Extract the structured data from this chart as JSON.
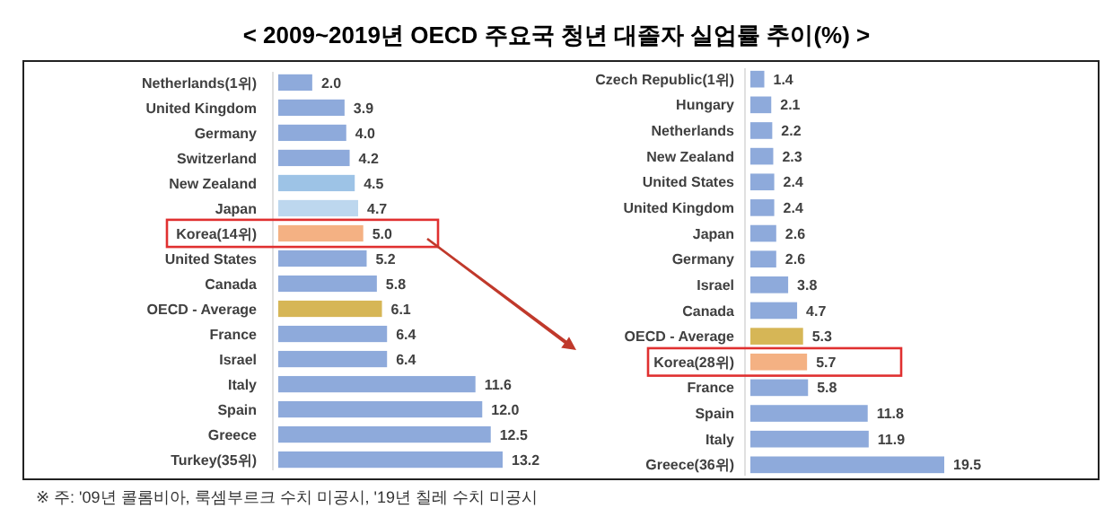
{
  "chart_data": [
    {
      "type": "bar",
      "orientation": "horizontal",
      "title": "< 2009~2019년 OECD 주요국 청년 대졸자 실업률 추이(%) >",
      "categories": [
        "Netherlands(1위)",
        "United Kingdom",
        "Germany",
        "Switzerland",
        "New Zealand",
        "Japan",
        "Korea(14위)",
        "United States",
        "Canada",
        "OECD - Average",
        "France",
        "Israel",
        "Italy",
        "Spain",
        "Greece",
        "Turkey(35위)"
      ],
      "values": [
        2.0,
        3.9,
        4.0,
        4.2,
        4.5,
        4.7,
        5.0,
        5.2,
        5.8,
        6.1,
        6.4,
        6.4,
        11.6,
        12.0,
        12.5,
        13.2
      ],
      "value_labels": [
        "2.0",
        "3.9",
        "4.0",
        "4.2",
        "4.5",
        "4.7",
        "5.0",
        "5.2",
        "5.8",
        "6.1",
        "6.4",
        "6.4",
        "11.6",
        "12.0",
        "12.5",
        "13.2"
      ],
      "colors": [
        "#8eaadb",
        "#8eaadb",
        "#8eaadb",
        "#8eaadb",
        "#9dc3e6",
        "#bdd7ee",
        "#f4b183",
        "#8eaadb",
        "#8eaadb",
        "#d6b656",
        "#8eaadb",
        "#8eaadb",
        "#8eaadb",
        "#8eaadb",
        "#8eaadb",
        "#8eaadb"
      ]
    },
    {
      "type": "bar",
      "orientation": "horizontal",
      "data_labels": true,
      "annotations": [
        "※ 주: '09년 콜롬비아, 룩셈부르크 수치 미공시, '19년 칠레 수치 미공시"
      ],
      "categories": [
        "Czech Republic(1위)",
        "Hungary",
        "Netherlands",
        "New Zealand",
        "United States",
        "United Kingdom",
        "Japan",
        "Germany",
        "Israel",
        "Canada",
        "OECD - Average",
        "Korea(28위)",
        "France",
        "Spain",
        "Italy",
        "Greece(36위)"
      ],
      "values": [
        1.4,
        2.1,
        2.2,
        2.3,
        2.4,
        2.4,
        2.6,
        2.6,
        3.8,
        4.7,
        5.3,
        5.7,
        5.8,
        11.8,
        11.9,
        19.5
      ],
      "colors": [
        "#8eaadb",
        "#8eaadb",
        "#8eaadb",
        "#8eaadb",
        "#8eaadb",
        "#8eaadb",
        "#8eaadb",
        "#8eaadb",
        "#8eaadb",
        "#8eaadb",
        "#d6b656",
        "#f4b183",
        "#8eaadb",
        "#8eaadb",
        "#8eaadb",
        "#8eaadb"
      ]
    }
  ]
}
